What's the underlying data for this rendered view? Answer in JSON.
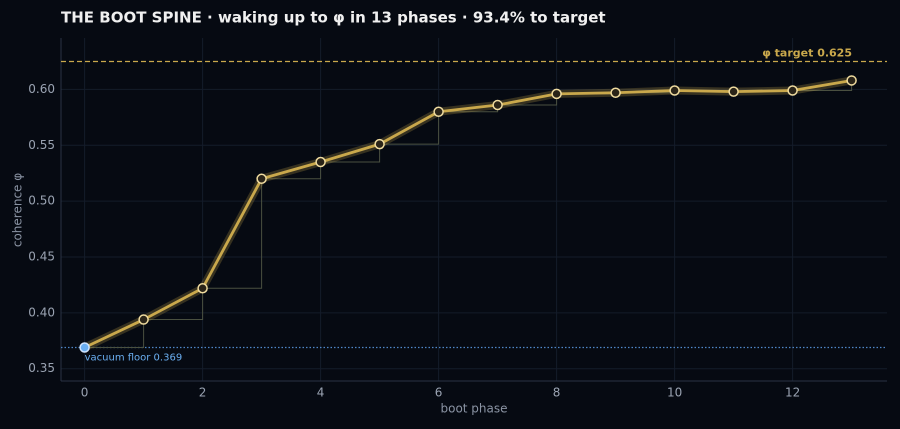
{
  "chart_data": {
    "type": "line",
    "title": "THE BOOT SPINE  ·  waking up to φ in 13 phases  ·  93.4% to target",
    "x_label": "boot phase",
    "y_label": "coherence  φ",
    "x": [
      0,
      1,
      2,
      3,
      4,
      5,
      6,
      7,
      8,
      9,
      10,
      11,
      12,
      13
    ],
    "series": [
      {
        "name": "coherence",
        "color": "#c9a84c",
        "values": [
          0.369,
          0.394,
          0.422,
          0.52,
          0.535,
          0.551,
          0.58,
          0.586,
          0.596,
          0.597,
          0.599,
          0.598,
          0.599,
          0.608
        ]
      }
    ],
    "start_marker_color": "#6aaef0",
    "target": {
      "value": 0.625,
      "label": "φ target  0.625",
      "color": "#c9a84c"
    },
    "floor": {
      "value": 0.369,
      "label": "vacuum floor  0.369",
      "color": "#4f86c8"
    },
    "xlim": [
      -0.4,
      13.6
    ],
    "ylim": [
      0.339,
      0.646
    ],
    "xticks": [
      0,
      2,
      4,
      6,
      8,
      10,
      12
    ],
    "yticks": [
      0.35,
      {
        "value": 0.4,
        "label": "0.40"
      },
      0.45,
      {
        "value": 0.5,
        "label": "0.50"
      },
      0.55,
      {
        "value": 0.6,
        "label": "0.60"
      }
    ],
    "grid": true
  }
}
